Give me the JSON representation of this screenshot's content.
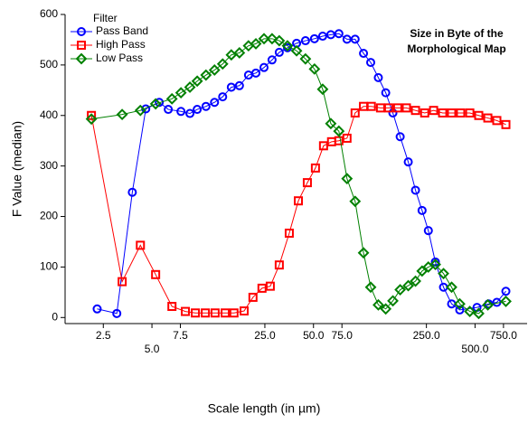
{
  "chart_data": {
    "type": "line",
    "annotation": [
      "Size in Byte of the",
      "Morphological Map"
    ],
    "xlabel": "Scale length (in µm)",
    "ylabel": "F Value (median)",
    "legend_title": "Filter",
    "legend": "upper left",
    "logx": true,
    "xlim": [
      1.45,
      1050
    ],
    "xticks": [
      2.5,
      {
        "value": 5,
        "label": "5.0"
      },
      7.5,
      {
        "value": 25,
        "label": "25.0"
      },
      {
        "value": 50,
        "label": "50.0"
      },
      {
        "value": 75,
        "label": "75.0"
      },
      {
        "value": 250,
        "label": "250.0"
      },
      {
        "value": 500,
        "label": "500.0"
      },
      {
        "value": 750,
        "label": "750.0"
      }
    ],
    "ylim": [
      -12,
      600
    ],
    "yticks": [
      0,
      100,
      200,
      300,
      400,
      500,
      600
    ],
    "series": [
      {
        "name": "Pass Band",
        "color": "#0000ff",
        "marker": "circle",
        "x": [
          2.29,
          3.03,
          3.78,
          4.58,
          5.55,
          6.31,
          7.56,
          8.59,
          9.53,
          10.8,
          12.2,
          13.7,
          15.5,
          17.4,
          19.8,
          22.0,
          24.7,
          27.7,
          30.7,
          34.5,
          39.3,
          44.6,
          50.7,
          57.0,
          64.0,
          71.8,
          80.6,
          90.5,
          102,
          113,
          126,
          140,
          155,
          172,
          193,
          214,
          235,
          257,
          284,
          319,
          358,
          402,
          514,
          607,
          682,
          776
        ],
        "values": [
          17,
          8,
          248,
          413,
          426,
          412,
          408,
          404,
          412,
          418,
          426,
          437,
          456,
          459,
          480,
          484,
          495,
          510,
          525,
          534,
          543,
          548,
          552,
          557,
          560,
          562,
          551,
          551,
          523,
          505,
          475,
          445,
          405,
          358,
          308,
          252,
          212,
          172,
          110,
          60,
          27,
          15,
          20,
          27,
          30,
          52
        ]
      },
      {
        "name": "High Pass",
        "color": "#ff0000",
        "marker": "square",
        "x": [
          2.11,
          3.27,
          4.24,
          5.27,
          6.65,
          8.05,
          9.28,
          10.7,
          12.3,
          14.2,
          16.1,
          18.6,
          21.1,
          24.0,
          27.0,
          30.7,
          35.4,
          40.3,
          45.8,
          51.4,
          57.7,
          64.7,
          71.8,
          80.6,
          90.5,
          102,
          114,
          130,
          146,
          166,
          188,
          214,
          244,
          277,
          315,
          358,
          407,
          464,
          527,
          600,
          682,
          776
        ],
        "values": [
          400,
          71,
          143,
          85,
          22,
          12,
          9,
          9,
          9,
          9,
          9,
          13,
          40,
          58,
          62,
          104,
          167,
          231,
          267,
          296,
          340,
          348,
          350,
          355,
          405,
          418,
          418,
          415,
          415,
          415,
          415,
          410,
          405,
          410,
          405,
          405,
          405,
          405,
          400,
          395,
          390,
          382
        ]
      },
      {
        "name": "Low Pass",
        "color": "#008000",
        "marker": "diamond",
        "x": [
          2.11,
          3.27,
          4.24,
          5.27,
          6.65,
          7.56,
          8.59,
          9.53,
          10.8,
          12.2,
          13.7,
          15.5,
          17.4,
          19.8,
          22.0,
          24.7,
          27.7,
          30.7,
          34.5,
          39.3,
          44.6,
          50.7,
          57.0,
          64.0,
          71.8,
          80.6,
          90.5,
          102,
          113,
          126,
          140,
          155,
          172,
          193,
          214,
          235,
          257,
          284,
          319,
          358,
          402,
          464,
          527,
          600,
          776
        ],
        "values": [
          393,
          402,
          410,
          423,
          433,
          445,
          456,
          468,
          480,
          490,
          502,
          520,
          524,
          538,
          542,
          552,
          552,
          548,
          538,
          528,
          512,
          492,
          452,
          384,
          369,
          275,
          230,
          128,
          60,
          25,
          17,
          33,
          55,
          63,
          72,
          92,
          100,
          105,
          87,
          60,
          27,
          12,
          8,
          25,
          32
        ]
      }
    ]
  }
}
